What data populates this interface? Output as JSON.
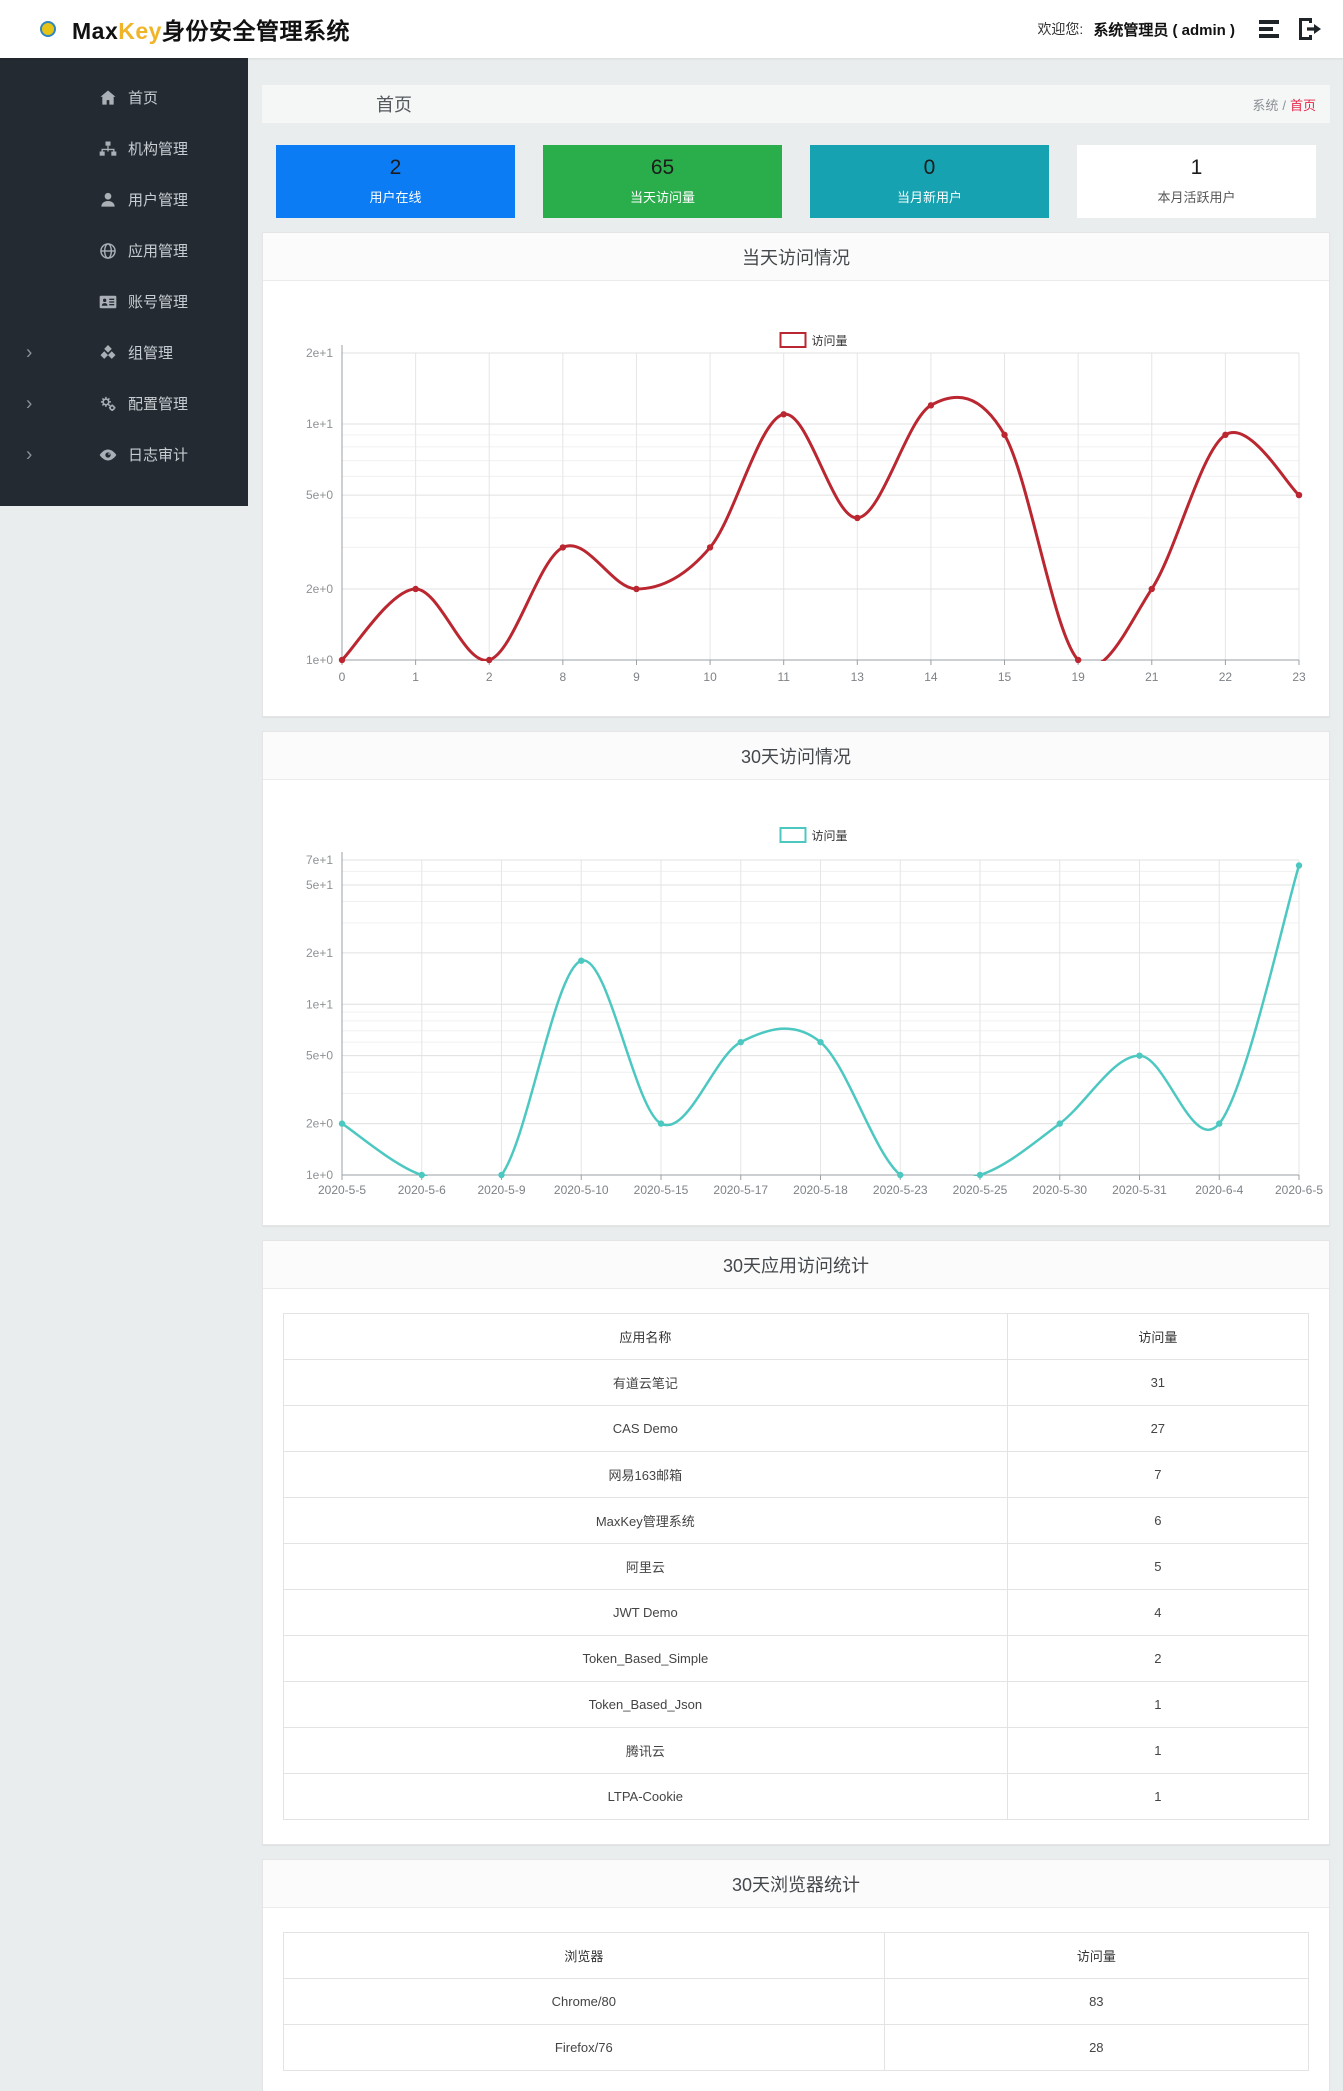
{
  "header": {
    "brand_max": "Max",
    "brand_key": "Key",
    "brand_suffix": "身份安全管理系统",
    "welcome_label": "欢迎您:",
    "user": "系统管理员 ( admin )"
  },
  "sidebar": {
    "items": [
      {
        "label": "首页",
        "icon": "home-icon",
        "expandable": false
      },
      {
        "label": "机构管理",
        "icon": "sitemap-icon",
        "expandable": false
      },
      {
        "label": "用户管理",
        "icon": "user-icon",
        "expandable": false
      },
      {
        "label": "应用管理",
        "icon": "globe-icon",
        "expandable": false
      },
      {
        "label": "账号管理",
        "icon": "id-card-icon",
        "expandable": false
      },
      {
        "label": "组管理",
        "icon": "cubes-icon",
        "expandable": true
      },
      {
        "label": "配置管理",
        "icon": "gears-icon",
        "expandable": true
      },
      {
        "label": "日志审计",
        "icon": "eye-icon",
        "expandable": true
      }
    ]
  },
  "page_header": {
    "title": "首页",
    "breadcrumb": {
      "system": "系统",
      "separator": "/",
      "current": "首页"
    }
  },
  "stat_cards": [
    {
      "value": "2",
      "label": "用户在线",
      "color": "#0c7cf4"
    },
    {
      "value": "65",
      "label": "当天访问量",
      "color": "#2aad4b"
    },
    {
      "value": "0",
      "label": "当月新用户",
      "color": "#16a2b0"
    },
    {
      "value": "1",
      "label": "本月活跃用户",
      "color": "#ffffff"
    }
  ],
  "chart_data": [
    {
      "type": "line",
      "title": "当天访问情况",
      "legend": "访问量",
      "color": "#ba2730",
      "scale": "log",
      "ylim": [
        1,
        20
      ],
      "categories": [
        "0",
        "1",
        "2",
        "8",
        "9",
        "10",
        "11",
        "13",
        "14",
        "15",
        "19",
        "21",
        "22",
        "23"
      ],
      "values": [
        1,
        2,
        1,
        3,
        2,
        3,
        11,
        4,
        12,
        9,
        1,
        2,
        9,
        5
      ],
      "y_ticks": [
        {
          "v": 20,
          "label": "2e+1"
        },
        {
          "v": 10,
          "label": "1e+1"
        },
        {
          "v": 5,
          "label": "5e+0"
        },
        {
          "v": 2,
          "label": "2e+0"
        },
        {
          "v": 1,
          "label": "1e+0"
        }
      ],
      "minor_grid": [
        9,
        8,
        7,
        6,
        4,
        3
      ]
    },
    {
      "type": "line",
      "title": "30天访问情况",
      "legend": "访问量",
      "color": "#4dc8c1",
      "scale": "log",
      "ylim": [
        1,
        70
      ],
      "categories": [
        "2020-5-5",
        "2020-5-6",
        "2020-5-9",
        "2020-5-10",
        "2020-5-15",
        "2020-5-17",
        "2020-5-18",
        "2020-5-23",
        "2020-5-25",
        "2020-5-30",
        "2020-5-31",
        "2020-6-4",
        "2020-6-5"
      ],
      "values": [
        2,
        1,
        1,
        18,
        2,
        6,
        6,
        1,
        1,
        2,
        5,
        2,
        65
      ],
      "y_ticks": [
        {
          "v": 70,
          "label": "7e+1"
        },
        {
          "v": 50,
          "label": "5e+1"
        },
        {
          "v": 20,
          "label": "2e+1"
        },
        {
          "v": 10,
          "label": "1e+1"
        },
        {
          "v": 5,
          "label": "5e+0"
        },
        {
          "v": 2,
          "label": "2e+0"
        },
        {
          "v": 1,
          "label": "1e+0"
        }
      ],
      "minor_grid": [
        60,
        40,
        30,
        9,
        8,
        7,
        6,
        4,
        3
      ]
    }
  ],
  "tables": [
    {
      "title": "30天应用访问统计",
      "columns": [
        "应用名称",
        "访问量"
      ],
      "rows": [
        [
          "有道云笔记",
          "31"
        ],
        [
          "CAS Demo",
          "27"
        ],
        [
          "网易163邮箱",
          "7"
        ],
        [
          "MaxKey管理系统",
          "6"
        ],
        [
          "阿里云",
          "5"
        ],
        [
          "JWT Demo",
          "4"
        ],
        [
          "Token_Based_Simple",
          "2"
        ],
        [
          "Token_Based_Json",
          "1"
        ],
        [
          "腾讯云",
          "1"
        ],
        [
          "LTPA-Cookie",
          "1"
        ]
      ]
    },
    {
      "title": "30天浏览器统计",
      "columns": [
        "浏览器",
        "访问量"
      ],
      "rows": [
        [
          "Chrome/80",
          "83"
        ],
        [
          "Firefox/76",
          "28"
        ]
      ]
    }
  ]
}
